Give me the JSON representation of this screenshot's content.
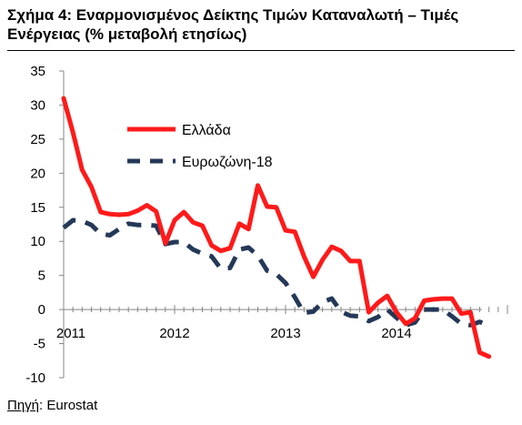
{
  "title": {
    "line1": "Σχήμα 4: Εναρμονισμένος Δείκτης Τιμών Καταναλωτή – Τιμές",
    "line2": "Ενέργειας (% μεταβολή ετησίως)"
  },
  "source": {
    "label": "Πηγή",
    "sep": ": ",
    "text": "Eurostat"
  },
  "chart_data": {
    "type": "line",
    "title": "Σχήμα 4: Εναρμονισμένος Δείκτης Τιμών Καταναλωτή – Τιμές Ενέργειας (% μεταβολή ετησίως)",
    "xlabel": "",
    "ylabel": "",
    "ylim": [
      -10,
      35
    ],
    "yticks": [
      -10,
      -5,
      0,
      5,
      10,
      15,
      20,
      25,
      30,
      35
    ],
    "xticks": [
      "2011",
      "2012",
      "2013",
      "2014"
    ],
    "grid": false,
    "legend_position": "top-center",
    "x": [
      "2011-01",
      "2011-02",
      "2011-03",
      "2011-04",
      "2011-05",
      "2011-06",
      "2011-07",
      "2011-08",
      "2011-09",
      "2011-10",
      "2011-11",
      "2011-12",
      "2012-01",
      "2012-02",
      "2012-03",
      "2012-04",
      "2012-05",
      "2012-06",
      "2012-07",
      "2012-08",
      "2012-09",
      "2012-10",
      "2012-11",
      "2012-12",
      "2013-01",
      "2013-02",
      "2013-03",
      "2013-04",
      "2013-05",
      "2013-06",
      "2013-07",
      "2013-08",
      "2013-09",
      "2013-10",
      "2013-11",
      "2013-12",
      "2014-01",
      "2014-02",
      "2014-03",
      "2014-04",
      "2014-05",
      "2014-06",
      "2014-07",
      "2014-08",
      "2014-09",
      "2014-10",
      "2014-11",
      "2014-12"
    ],
    "series": [
      {
        "name": "Ελλάδα",
        "color": "#ff1a1a",
        "style": "solid",
        "values": [
          31.0,
          26.0,
          20.5,
          18.0,
          14.3,
          14.0,
          13.9,
          14.0,
          14.5,
          15.3,
          14.4,
          9.7,
          13.1,
          14.3,
          12.8,
          12.3,
          9.4,
          8.6,
          9.0,
          12.6,
          11.8,
          18.2,
          15.1,
          15.0,
          11.6,
          11.4,
          7.8,
          4.8,
          7.3,
          9.2,
          8.6,
          7.1,
          7.1,
          -0.4,
          1.0,
          2.0,
          -0.4,
          -2.1,
          -1.3,
          1.3,
          1.5,
          1.6,
          1.6,
          -0.6,
          -0.4,
          -6.3,
          -6.9,
          null
        ]
      },
      {
        "name": "Ευρωζώνη-18",
        "color": "#243858",
        "style": "dashed",
        "values": [
          12.0,
          13.1,
          13.0,
          12.4,
          11.1,
          10.9,
          11.8,
          12.6,
          12.4,
          12.4,
          12.3,
          9.6,
          9.9,
          9.9,
          8.8,
          8.2,
          7.8,
          6.0,
          6.1,
          8.8,
          9.1,
          7.9,
          5.7,
          5.2,
          3.9,
          1.8,
          -0.5,
          -0.3,
          1.1,
          1.6,
          -0.3,
          -0.9,
          -1.0,
          -1.7,
          -1.1,
          0.0,
          -1.2,
          -2.3,
          -1.9,
          0.0,
          0.0,
          0.0,
          -1.0,
          -2.1,
          -2.3,
          -1.8,
          -2.4,
          null
        ]
      }
    ]
  }
}
